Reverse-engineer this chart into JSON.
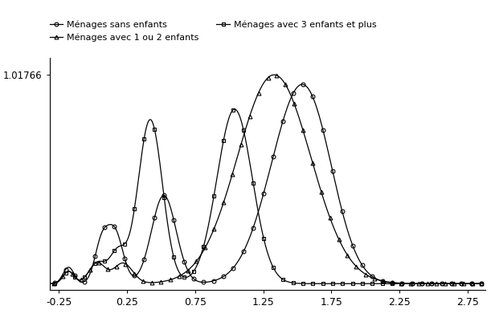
{
  "ytick_label": "1.01766",
  "xlim": [
    -0.32,
    2.88
  ],
  "ylim": [
    -0.03,
    1.1
  ],
  "xticks": [
    -0.25,
    0.25,
    0.75,
    1.25,
    1.75,
    2.25,
    2.75
  ],
  "background_color": "#ffffff",
  "line_color": "#000000",
  "marker_size": 3.5,
  "line_width": 0.9,
  "legend": [
    {
      "label": "Ménages sans enfants",
      "marker": "o"
    },
    {
      "label": "Ménages avec 1 ou 2 enfants",
      "marker": "^"
    },
    {
      "label": "Ménages avec 3 enfants et plus",
      "marker": "s"
    }
  ]
}
